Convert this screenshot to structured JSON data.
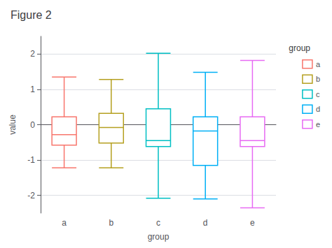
{
  "chart_data": {
    "type": "box",
    "title": "Figure 2",
    "xlabel": "group",
    "ylabel": "value",
    "categories": [
      "a",
      "b",
      "c",
      "d",
      "e"
    ],
    "values": [
      {
        "whislo": -1.22,
        "q1": -0.58,
        "med": -0.28,
        "q3": 0.22,
        "whishi": 1.35
      },
      {
        "whislo": -1.22,
        "q1": -0.52,
        "med": -0.08,
        "q3": 0.32,
        "whishi": 1.28
      },
      {
        "whislo": -2.08,
        "q1": -0.62,
        "med": -0.45,
        "q3": 0.45,
        "whishi": 2.02
      },
      {
        "whislo": -2.1,
        "q1": -1.15,
        "med": -0.18,
        "q3": 0.22,
        "whishi": 1.48
      },
      {
        "whislo": -2.35,
        "q1": -0.62,
        "med": -0.45,
        "q3": 0.22,
        "whishi": 1.82
      }
    ],
    "colors": [
      "#F8766D",
      "#B5A020",
      "#00BFC4",
      "#00B0F6",
      "#E76BF3"
    ],
    "ylim": [
      -2.5,
      2.5
    ],
    "yticks": [
      -2,
      -1,
      0,
      1,
      2
    ],
    "grid": true,
    "legend": "right",
    "legend_title": "group"
  }
}
